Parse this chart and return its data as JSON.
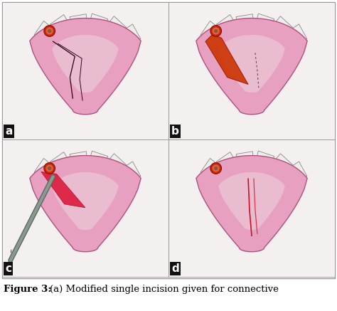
{
  "figure_title": "Figure 3:",
  "caption_text": "(a) Modified single incision given for connective",
  "panel_labels": [
    "a",
    "b",
    "c",
    "d"
  ],
  "background_color": "#ffffff",
  "caption_fontsize": 9.5,
  "label_fontsize": 11,
  "fig_width": 4.74,
  "fig_height": 4.37,
  "dpi": 100,
  "palate_color": "#d080a0",
  "palate_light": "#e8a0c0",
  "palate_edge": "#b05080",
  "teeth_color": "#f0eeea",
  "teeth_edge": "#888888",
  "implant_red": "#cc2211",
  "implant_orange": "#dd6633",
  "implant_inner": "#885544",
  "panel_bg": "#f5f0f0",
  "flap_orange": "#cc4400",
  "instrument_color": "#6a8070",
  "cut_line_color": "#cc1133"
}
